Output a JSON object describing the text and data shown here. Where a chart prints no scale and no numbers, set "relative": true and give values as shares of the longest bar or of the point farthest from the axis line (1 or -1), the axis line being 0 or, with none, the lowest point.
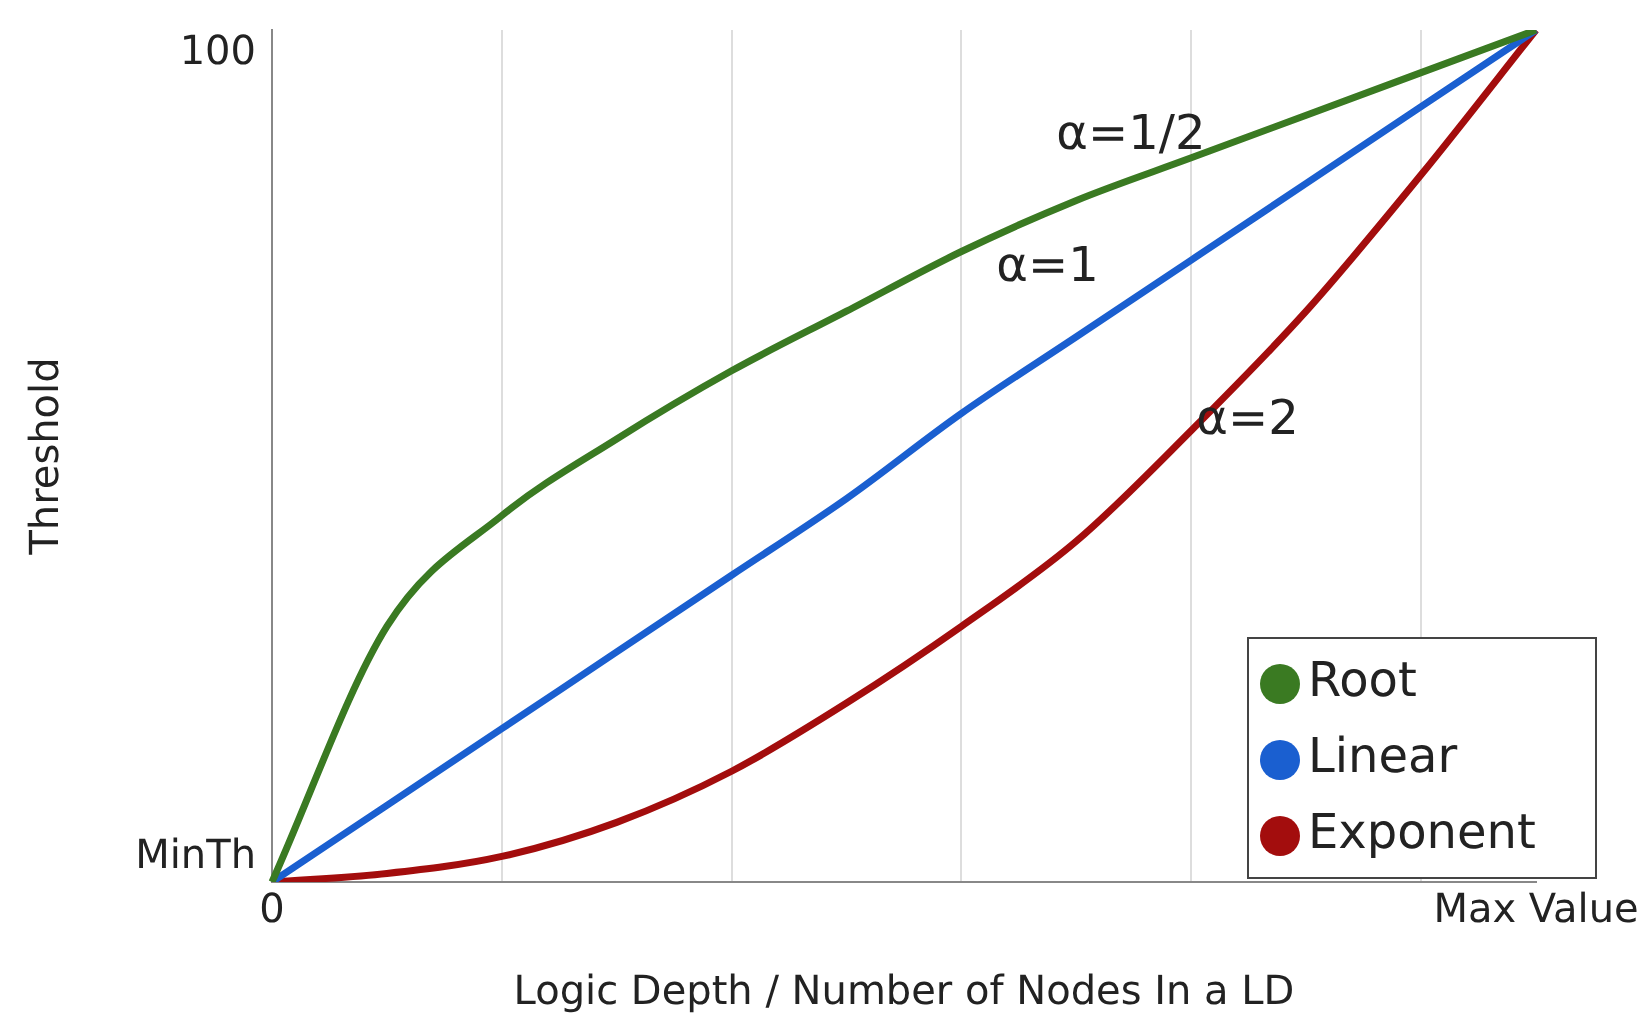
{
  "chart_data": {
    "type": "line",
    "relative": true,
    "xlabel": "Logic Depth / Number of Nodes In a LD",
    "ylabel": "Threshold",
    "categories": [
      "0",
      null,
      null,
      null,
      null,
      null,
      null,
      null,
      null,
      null,
      null,
      "Max Value"
    ],
    "series": [
      {
        "name": "Root",
        "color": "#3a7a22",
        "values": [
          0,
          0.3,
          0.43,
          0.52,
          0.6,
          0.67,
          0.74,
          0.8,
          0.85,
          0.9,
          0.95,
          1
        ]
      },
      {
        "name": "Linear",
        "color": "#1a5fd0",
        "values": [
          0,
          0.09,
          0.18,
          0.27,
          0.36,
          0.45,
          0.55,
          0.64,
          0.73,
          0.82,
          0.91,
          1
        ]
      },
      {
        "name": "Exponent",
        "color": "#a30d0d",
        "values": [
          0,
          0.01,
          0.03,
          0.07,
          0.13,
          0.21,
          0.3,
          0.4,
          0.53,
          0.67,
          0.83,
          1
        ]
      }
    ],
    "annotations": [
      "MinTh",
      "100",
      "α=1/2",
      "α=1",
      "α=2"
    ],
    "grid": "x",
    "legend": "bottom right",
    "marker": "none",
    "line_style": "solid"
  }
}
